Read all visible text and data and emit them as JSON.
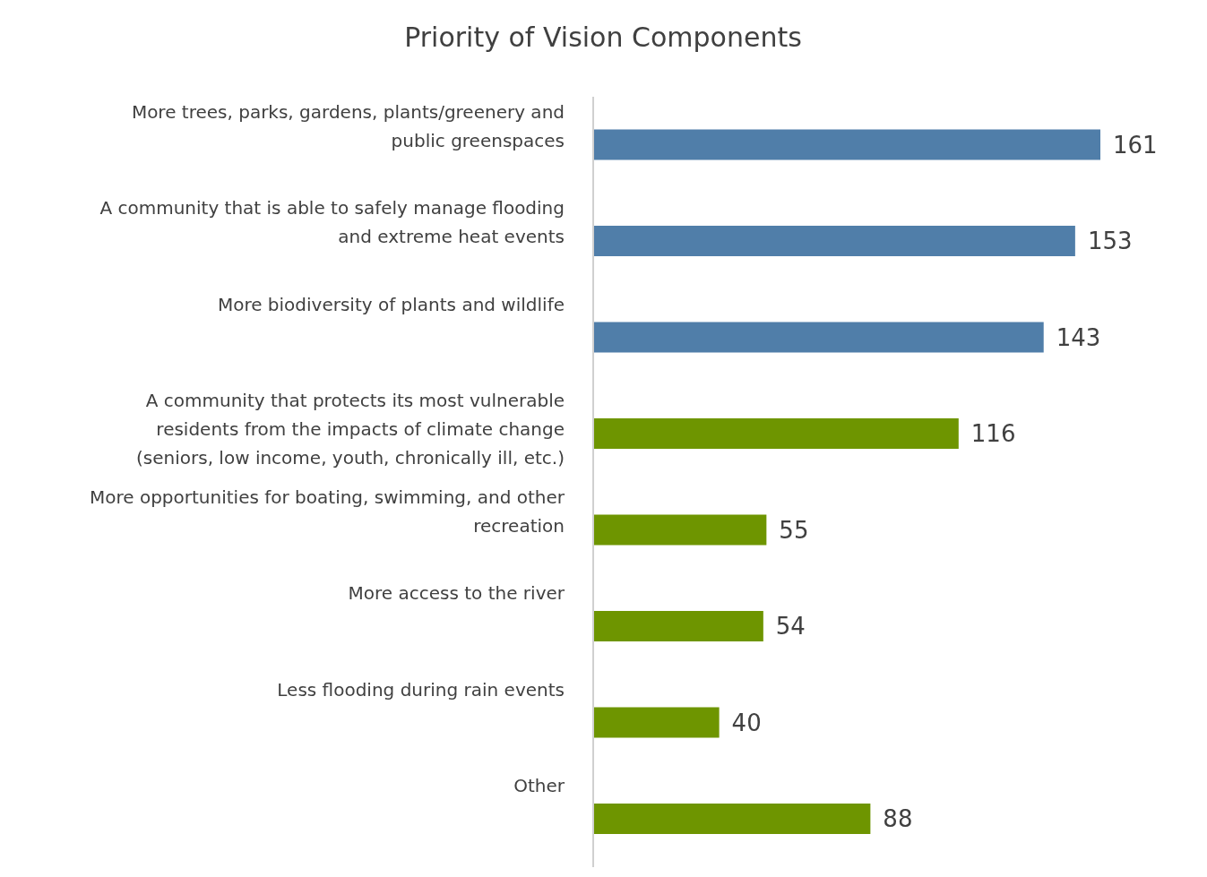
{
  "chart_data": {
    "type": "bar",
    "orientation": "horizontal",
    "title": "Priority of Vision Components",
    "categories": [
      "More trees, parks, gardens, plants/greenery and public greenspaces",
      "A community that is able to safely manage flooding and extreme heat events",
      "More biodiversity of plants and wildlife",
      "A community that protects its most vulnerable residents from the impacts of climate change (seniors, low income, youth, chronically ill, etc.)",
      "More opportunities for boating, swimming, and other recreation",
      "More access to the river",
      "Less flooding during rain events",
      "Other"
    ],
    "values": [
      161,
      153,
      143,
      116,
      55,
      54,
      40,
      88
    ],
    "colors": [
      "#507ea9",
      "#507ea9",
      "#507ea9",
      "#6e9500",
      "#6e9500",
      "#6e9500",
      "#6e9500",
      "#6e9500"
    ],
    "data_labels": true
  }
}
